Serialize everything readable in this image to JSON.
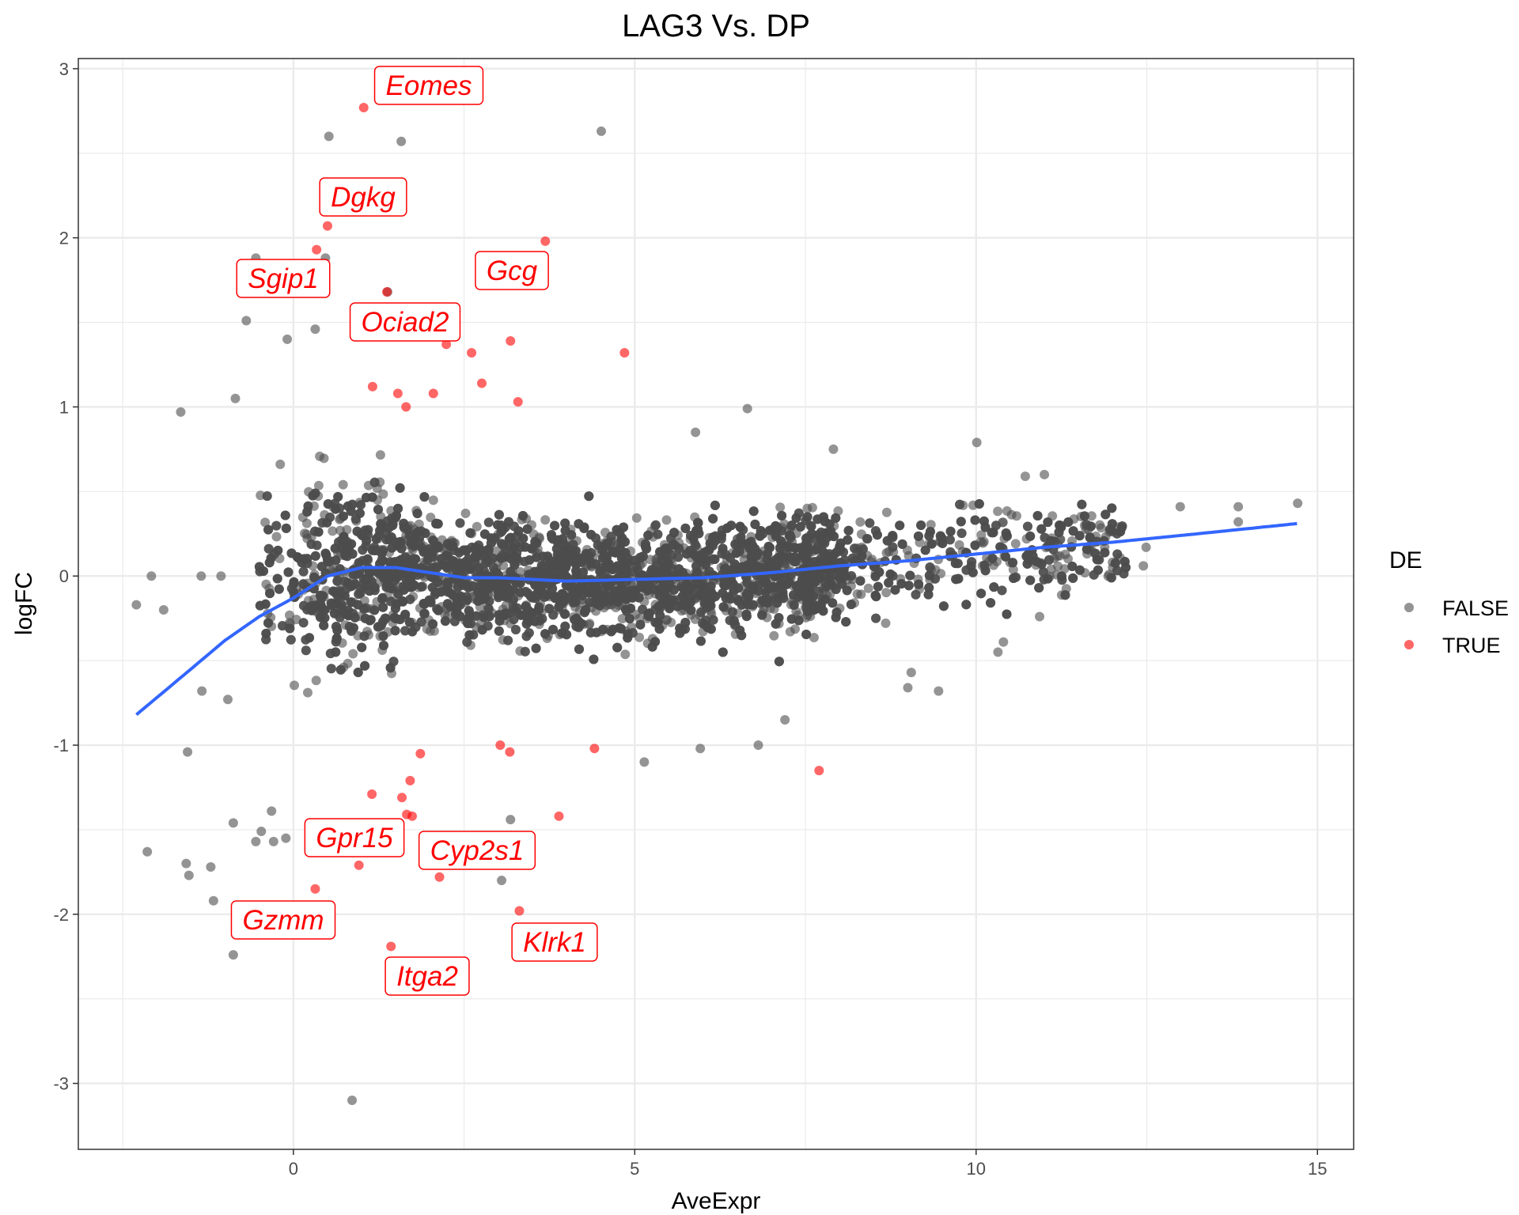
{
  "chart_data": {
    "type": "scatter",
    "title": "LAG3 Vs. DP",
    "xlabel": "AveExpr",
    "ylabel": "logFC",
    "xlim": [
      -3.15,
      15.53
    ],
    "ylim": [
      -3.39,
      3.06
    ],
    "x_ticks": [
      0,
      5,
      10,
      15
    ],
    "y_ticks": [
      -3,
      -2,
      -1,
      0,
      1,
      2,
      3
    ],
    "grid": true,
    "legend": {
      "title": "DE",
      "position": "right",
      "entries": [
        {
          "label": "FALSE",
          "color": "#4d4d4d"
        },
        {
          "label": "TRUE",
          "color": "#ff0000"
        }
      ]
    },
    "colors": {
      "FALSE": "#4d4d4d",
      "TRUE": "#ff0000",
      "smooth": "#3366ff"
    },
    "note_dense_cloud": "thousands of FALSE points concentrated at AveExpr 0-12, logFC about -0.6 to 0.6",
    "series": [
      {
        "name": "TRUE",
        "points": [
          {
            "x": 1.03,
            "y": 2.77,
            "label": "Eomes"
          },
          {
            "x": 0.5,
            "y": 2.07,
            "label": "Dgkg"
          },
          {
            "x": 0.34,
            "y": 1.93,
            "label": "Sgip1"
          },
          {
            "x": 3.69,
            "y": 1.98,
            "label": "Gcg"
          },
          {
            "x": 1.37,
            "y": 1.68,
            "label": "Ociad2"
          },
          {
            "x": 2.24,
            "y": 1.37
          },
          {
            "x": 2.61,
            "y": 1.32
          },
          {
            "x": 3.18,
            "y": 1.39
          },
          {
            "x": 4.85,
            "y": 1.32
          },
          {
            "x": 2.76,
            "y": 1.14
          },
          {
            "x": 1.16,
            "y": 1.12
          },
          {
            "x": 1.53,
            "y": 1.08
          },
          {
            "x": 1.65,
            "y": 1.0
          },
          {
            "x": 2.05,
            "y": 1.08
          },
          {
            "x": 3.29,
            "y": 1.03
          },
          {
            "x": 1.86,
            "y": -1.05
          },
          {
            "x": 3.03,
            "y": -1.0
          },
          {
            "x": 3.17,
            "y": -1.04
          },
          {
            "x": 4.41,
            "y": -1.02
          },
          {
            "x": 1.71,
            "y": -1.21
          },
          {
            "x": 1.15,
            "y": -1.29
          },
          {
            "x": 1.59,
            "y": -1.31
          },
          {
            "x": 1.66,
            "y": -1.41
          },
          {
            "x": 1.74,
            "y": -1.42
          },
          {
            "x": 3.89,
            "y": -1.42
          },
          {
            "x": 7.7,
            "y": -1.15
          },
          {
            "x": 0.96,
            "y": -1.71,
            "label": "Gpr15"
          },
          {
            "x": 2.14,
            "y": -1.78,
            "label": "Cyp2s1"
          },
          {
            "x": 0.32,
            "y": -1.85,
            "label": "Gzmm"
          },
          {
            "x": 3.31,
            "y": -1.98,
            "label": "Klrk1"
          },
          {
            "x": 1.43,
            "y": -2.19,
            "label": "Itga2"
          }
        ]
      },
      {
        "name": "FALSE",
        "points": [
          {
            "x": 0.52,
            "y": 2.6
          },
          {
            "x": 1.58,
            "y": 2.57
          },
          {
            "x": 4.51,
            "y": 2.63
          },
          {
            "x": -0.55,
            "y": 1.88
          },
          {
            "x": 0.47,
            "y": 1.88
          },
          {
            "x": 1.38,
            "y": 1.68
          },
          {
            "x": -0.69,
            "y": 1.51
          },
          {
            "x": -0.09,
            "y": 1.4
          },
          {
            "x": 0.32,
            "y": 1.46
          },
          {
            "x": -1.65,
            "y": 0.97
          },
          {
            "x": -0.85,
            "y": 1.05
          },
          {
            "x": 6.65,
            "y": 0.99
          },
          {
            "x": 10.01,
            "y": 0.79
          },
          {
            "x": -2.08,
            "y": 0.0
          },
          {
            "x": -2.3,
            "y": -0.17
          },
          {
            "x": -1.9,
            "y": -0.2
          },
          {
            "x": -1.35,
            "y": 0.0
          },
          {
            "x": -1.06,
            "y": 0.0
          },
          {
            "x": -1.55,
            "y": -1.04
          },
          {
            "x": -2.14,
            "y": -1.63
          },
          {
            "x": -1.57,
            "y": -1.7
          },
          {
            "x": -1.53,
            "y": -1.77
          },
          {
            "x": -1.21,
            "y": -1.72
          },
          {
            "x": -1.17,
            "y": -1.92
          },
          {
            "x": -0.88,
            "y": -1.46
          },
          {
            "x": -0.88,
            "y": -2.24
          },
          {
            "x": 0.86,
            "y": -3.1
          },
          {
            "x": 3.05,
            "y": -1.8
          },
          {
            "x": 3.18,
            "y": -1.44
          },
          {
            "x": 5.96,
            "y": -1.02
          },
          {
            "x": 5.14,
            "y": -1.1
          },
          {
            "x": 14.71,
            "y": 0.43
          },
          {
            "x": 13.84,
            "y": 0.32
          },
          {
            "x": 13.84,
            "y": 0.41
          },
          {
            "x": 12.99,
            "y": 0.41
          },
          {
            "x": 12.49,
            "y": 0.17
          },
          {
            "x": 12.45,
            "y": 0.06
          },
          {
            "x": 12.0,
            "y": 0.05
          },
          {
            "x": 10.93,
            "y": -0.24
          },
          {
            "x": 10.32,
            "y": -0.45
          },
          {
            "x": 10.4,
            "y": -0.39
          },
          {
            "x": 9.05,
            "y": -0.57
          },
          {
            "x": 9.45,
            "y": -0.68
          },
          {
            "x": 9.0,
            "y": -0.66
          },
          {
            "x": 7.2,
            "y": -0.85
          },
          {
            "x": 6.81,
            "y": -1.0
          },
          {
            "x": 10.72,
            "y": 0.59
          },
          {
            "x": 11.0,
            "y": 0.6
          },
          {
            "x": 7.91,
            "y": 0.75
          },
          {
            "x": 5.89,
            "y": 0.85
          },
          {
            "x": -0.96,
            "y": -0.73
          },
          {
            "x": -1.34,
            "y": -0.68
          },
          {
            "x": -0.32,
            "y": -1.39
          },
          {
            "x": -0.47,
            "y": -1.51
          },
          {
            "x": -0.55,
            "y": -1.57
          },
          {
            "x": -0.29,
            "y": -1.57
          },
          {
            "x": -0.11,
            "y": -1.55
          }
        ]
      }
    ],
    "smooth_line": {
      "x": [
        -2.3,
        -1.5,
        -1.0,
        -0.5,
        0.0,
        0.5,
        1.0,
        1.5,
        2.0,
        2.5,
        3.0,
        3.5,
        4.0,
        5.0,
        6.0,
        7.0,
        8.0,
        9.0,
        10.0,
        11.0,
        12.0,
        13.0,
        14.7
      ],
      "y": [
        -0.82,
        -0.55,
        -0.38,
        -0.24,
        -0.13,
        0.0,
        0.05,
        0.05,
        0.02,
        -0.01,
        -0.01,
        -0.02,
        -0.03,
        -0.02,
        -0.01,
        0.02,
        0.06,
        0.09,
        0.13,
        0.17,
        0.2,
        0.24,
        0.31
      ]
    }
  }
}
